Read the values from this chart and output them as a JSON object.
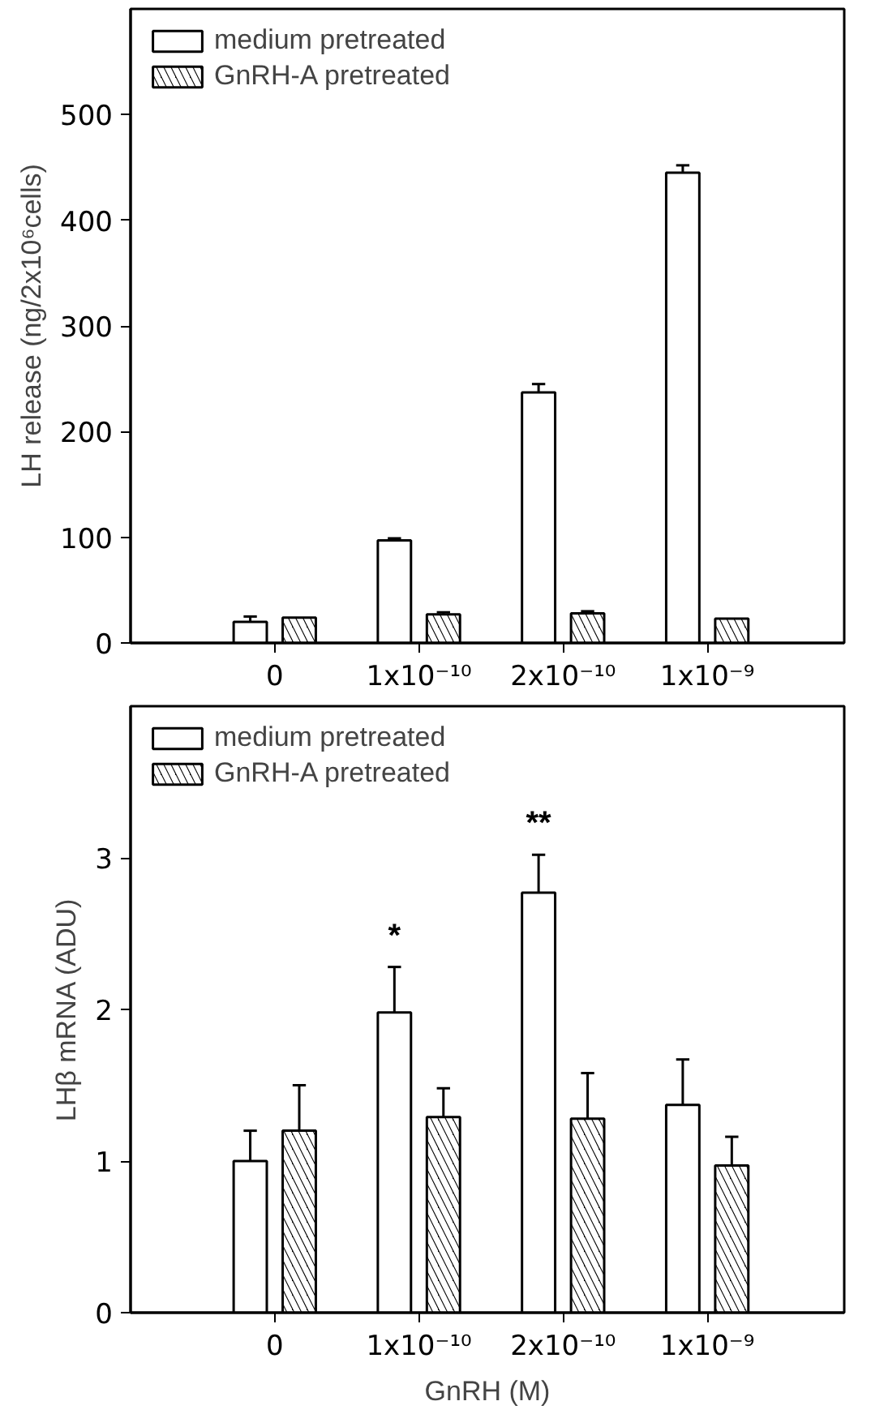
{
  "chart_data": [
    {
      "type": "bar",
      "ylabel": "LH release (ng/2x10⁶cells)",
      "categories": [
        "0",
        "1x10⁻¹⁰",
        "2x10⁻¹⁰",
        "1x10⁻⁹"
      ],
      "ylim": [
        0,
        600
      ],
      "yticks": [
        0,
        100,
        200,
        300,
        400,
        500
      ],
      "legend": "top left",
      "grid": false,
      "series": [
        {
          "name": "medium pretreated",
          "color": "#ffffff",
          "values": [
            20,
            97,
            237,
            445
          ],
          "errors": [
            [
              20,
              25
            ],
            [
              97,
              99
            ],
            [
              237,
              245
            ],
            [
              445,
              452
            ]
          ]
        },
        {
          "name": "GnRH-A pretreated",
          "color": "#000000",
          "values": [
            24,
            27,
            28,
            23
          ],
          "errors": [
            null,
            [
              27,
              29
            ],
            [
              28,
              30
            ],
            null
          ]
        }
      ]
    },
    {
      "type": "bar",
      "ylabel": "LHβ mRNA (ADU)",
      "xlabel": "GnRH (M)",
      "categories": [
        "0",
        "1x10⁻¹⁰",
        "2x10⁻¹⁰",
        "1x10⁻⁹"
      ],
      "ylim": [
        0,
        4
      ],
      "yticks": [
        0,
        1,
        2,
        3
      ],
      "legend": "top left",
      "grid": false,
      "series": [
        {
          "name": "medium pretreated",
          "color": "#ffffff",
          "values": [
            1.0,
            1.98,
            2.77,
            1.37
          ],
          "errors": [
            [
              1.0,
              1.2
            ],
            [
              1.98,
              2.28
            ],
            [
              2.77,
              3.02
            ],
            [
              1.37,
              1.67
            ]
          ]
        },
        {
          "name": "GnRH-A pretreated",
          "color": "#000000",
          "values": [
            1.2,
            1.29,
            1.28,
            0.97
          ],
          "errors": [
            [
              1.2,
              1.5
            ],
            [
              1.29,
              1.48
            ],
            [
              1.28,
              1.58
            ],
            [
              0.97,
              1.16
            ]
          ]
        }
      ],
      "annotations": [
        "*",
        "**"
      ]
    }
  ]
}
